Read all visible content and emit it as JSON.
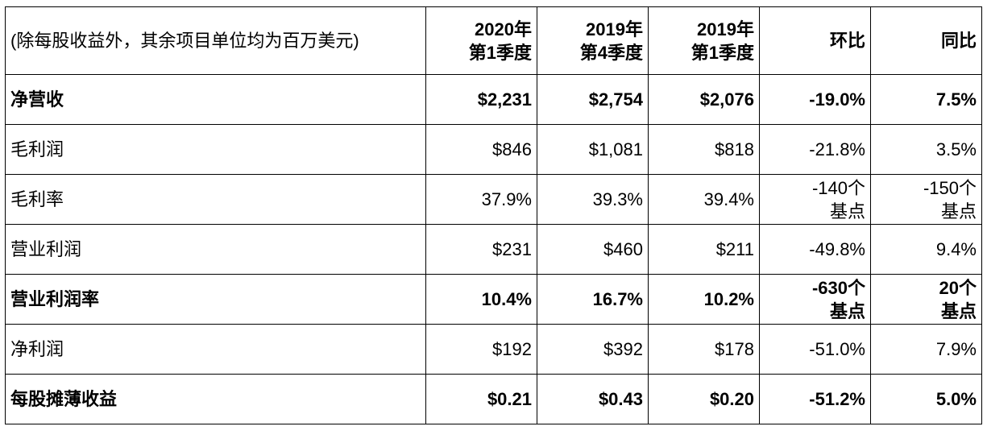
{
  "table": {
    "header": {
      "label": "(除每股收益外，其余项目单位均为百万美元)",
      "columns": [
        {
          "line1": "2020年",
          "line2": "第1季度"
        },
        {
          "line1": "2019年",
          "line2": "第4季度"
        },
        {
          "line1": "2019年",
          "line2": "第1季度"
        },
        {
          "line1": "环比",
          "line2": ""
        },
        {
          "line1": "同比",
          "line2": ""
        }
      ]
    },
    "rows": [
      {
        "label": "净营收",
        "bold": true,
        "cells": [
          {
            "line1": "$2,231"
          },
          {
            "line1": "$2,754"
          },
          {
            "line1": "$2,076"
          },
          {
            "line1": "-19.0%"
          },
          {
            "line1": "7.5%"
          }
        ]
      },
      {
        "label": "毛利润",
        "bold": false,
        "cells": [
          {
            "line1": "$846"
          },
          {
            "line1": "$1,081"
          },
          {
            "line1": "$818"
          },
          {
            "line1": "-21.8%"
          },
          {
            "line1": "3.5%"
          }
        ]
      },
      {
        "label": "毛利率",
        "bold": false,
        "cells": [
          {
            "line1": "37.9%"
          },
          {
            "line1": "39.3%"
          },
          {
            "line1": "39.4%"
          },
          {
            "line1": "-140个",
            "line2": "基点"
          },
          {
            "line1": "-150个",
            "line2": "基点"
          }
        ]
      },
      {
        "label": "营业利润",
        "bold": false,
        "cells": [
          {
            "line1": "$231"
          },
          {
            "line1": "$460"
          },
          {
            "line1": "$211"
          },
          {
            "line1": "-49.8%"
          },
          {
            "line1": "9.4%"
          }
        ]
      },
      {
        "label": "营业利润率",
        "bold": true,
        "cells": [
          {
            "line1": "10.4%"
          },
          {
            "line1": "16.7%"
          },
          {
            "line1": "10.2%"
          },
          {
            "line1": "-630个",
            "line2": "基点"
          },
          {
            "line1": "20个",
            "line2": "基点"
          }
        ]
      },
      {
        "label": "净利润",
        "bold": false,
        "cells": [
          {
            "line1": "$192"
          },
          {
            "line1": "$392"
          },
          {
            "line1": "$178"
          },
          {
            "line1": "-51.0%"
          },
          {
            "line1": "7.9%"
          }
        ]
      },
      {
        "label": "每股摊薄收益",
        "bold": true,
        "cells": [
          {
            "line1": "$0.21"
          },
          {
            "line1": "$0.43"
          },
          {
            "line1": "$0.20"
          },
          {
            "line1": "-51.2%"
          },
          {
            "line1": "5.0%"
          }
        ]
      }
    ]
  }
}
